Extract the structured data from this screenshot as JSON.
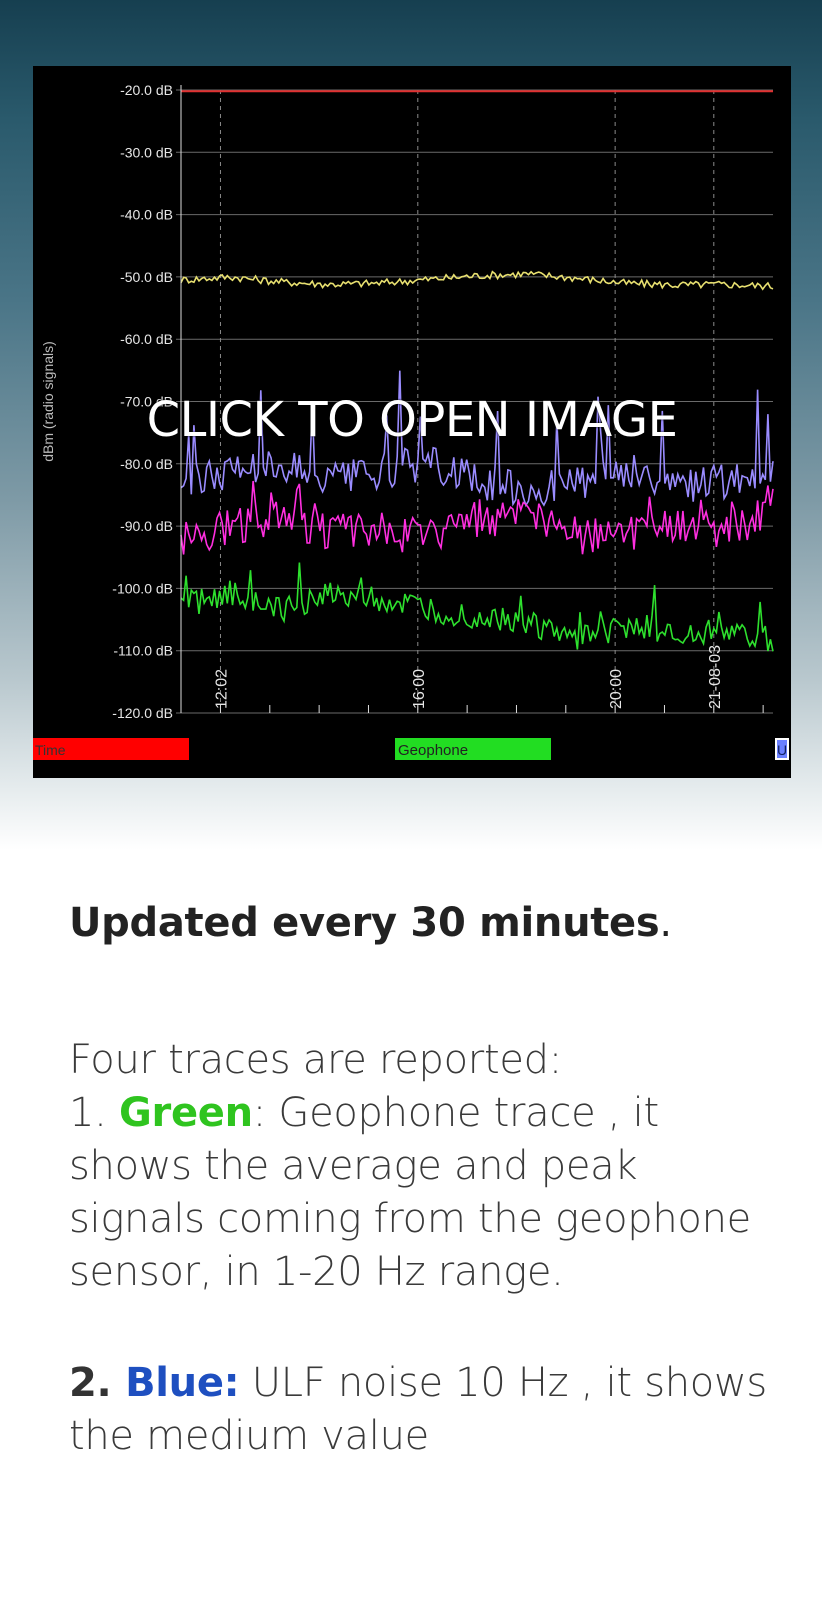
{
  "chart_data": {
    "type": "line",
    "ylabel": "dBm (radio signals)",
    "ylim": [
      -120,
      -20
    ],
    "y_ticks": [
      "-20.0 dB",
      "-30.0 dB",
      "-40.0 dB",
      "-50.0 dB",
      "-60.0 dB",
      "-70.0 dB",
      "-80.0 dB",
      "-90.0 dB",
      "-100.0 dB",
      "-110.0 dB",
      "-120.0 dB"
    ],
    "x_ticks": [
      "12:02",
      "16:00",
      "20:00",
      "21-08-03"
    ],
    "x_tick_positions": [
      0.0,
      4.0,
      8.0,
      10.0
    ],
    "xlim": [
      -0.8,
      11.2
    ],
    "legend": {
      "time_label": "Time",
      "geophone_label": "Geophone",
      "u_label": "U"
    },
    "series": [
      {
        "color": "#e03030",
        "values": [
          -20.2,
          -20.2,
          -20.2,
          -20.2,
          -20.2,
          -20.2,
          -20.2,
          -20.2,
          -20.2,
          -20.2,
          -20.2,
          -20.2,
          -20.2
        ]
      },
      {
        "color": "#e8e070",
        "values": [
          -50.5,
          -50.0,
          -50.8,
          -51.2,
          -51.0,
          -50.4,
          -49.8,
          -49.5,
          -50.2,
          -51.0,
          -51.3,
          -51.2,
          -51.5
        ]
      },
      {
        "color": "#9a8cff",
        "values": [
          -83.0,
          -81.0,
          -79.5,
          -83.0,
          -81.5,
          -79.5,
          -83.0,
          -84.0,
          -83.5,
          -81.0,
          -84.0,
          -83.0,
          -82.0
        ]
      },
      {
        "color": "#ff2fe0",
        "values": [
          -92.0,
          -90.0,
          -88.5,
          -91.0,
          -90.5,
          -92.0,
          -89.0,
          -88.5,
          -91.5,
          -92.0,
          -90.0,
          -90.5,
          -88.0
        ]
      },
      {
        "color": "#2ee02e",
        "values": [
          -103.0,
          -100.5,
          -103.5,
          -100.5,
          -102.0,
          -103.5,
          -104.5,
          -105.5,
          -108.5,
          -106.0,
          -106.5,
          -107.0,
          -108.0
        ]
      }
    ]
  },
  "overlay_label": "CLICK TO OPEN IMAGE",
  "article": {
    "subtitle": "Updated every 30 minutes",
    "subtitle_end": ".",
    "intro": "Four traces are reported:",
    "item1_num": "1. ",
    "item1_color": "Green",
    "item1_text": ": Geophone trace , it shows the average and peak signals coming from the geophone sensor, in 1-20 Hz range.",
    "item2_num": "2. ",
    "item2_color": "Blue:",
    "item2_text": " ULF noise 10 Hz , it shows the medium value"
  }
}
